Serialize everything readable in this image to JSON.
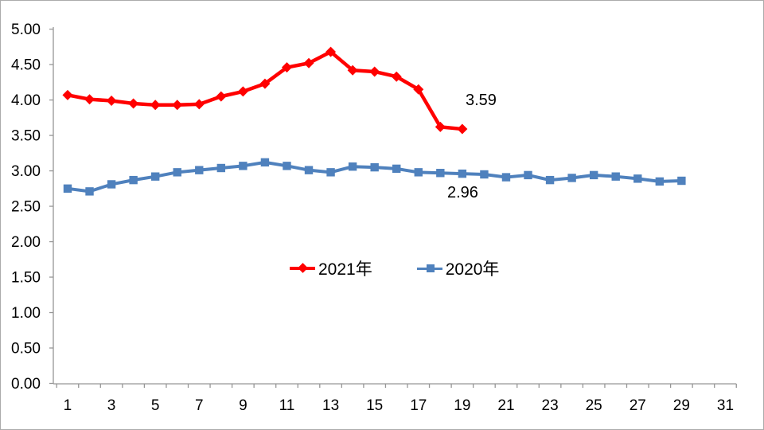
{
  "chart_data": {
    "type": "line",
    "title": "",
    "grid": false,
    "background": "#ffffff",
    "y_axis": {
      "min": 0.0,
      "max": 5.0,
      "step": 0.5,
      "tick_labels": [
        "5.00",
        "4.50",
        "4.00",
        "3.50",
        "3.00",
        "2.50",
        "2.00",
        "1.50",
        "1.00",
        "0.50",
        "0.00"
      ]
    },
    "x_axis": {
      "first_day": 1,
      "last_day": 31,
      "tick_labels": [
        "1",
        "3",
        "5",
        "7",
        "9",
        "11",
        "13",
        "15",
        "17",
        "19",
        "21",
        "23",
        "25",
        "27",
        "29",
        "31"
      ]
    },
    "series": [
      {
        "name": "2021年",
        "color": "#ff0000",
        "marker": "diamond",
        "first_day": 1,
        "values": [
          4.07,
          4.01,
          3.99,
          3.95,
          3.93,
          3.93,
          3.94,
          4.05,
          4.12,
          4.23,
          4.46,
          4.52,
          4.68,
          4.42,
          4.4,
          4.33,
          4.15,
          3.62,
          3.59
        ],
        "end_label": "3.59"
      },
      {
        "name": "2020年",
        "color": "#4f81bd",
        "marker": "square",
        "first_day": 1,
        "values": [
          2.75,
          2.71,
          2.81,
          2.87,
          2.92,
          2.98,
          3.01,
          3.04,
          3.07,
          3.12,
          3.07,
          3.01,
          2.98,
          3.06,
          3.05,
          3.03,
          2.98,
          2.97,
          2.96,
          2.95,
          2.91,
          2.94,
          2.87,
          2.9,
          2.94,
          2.92,
          2.89,
          2.85,
          2.86
        ],
        "end_label": "2.96"
      }
    ],
    "legend": {
      "position": "inside-bottom-center"
    },
    "annotations": [
      {
        "text": "3.59",
        "series": "2021年",
        "day": 19,
        "placement": "above-right"
      },
      {
        "text": "2.96",
        "series": "2020年",
        "day": 19,
        "placement": "below"
      }
    ],
    "axis_color": "#969696",
    "text_color": "#000000"
  }
}
